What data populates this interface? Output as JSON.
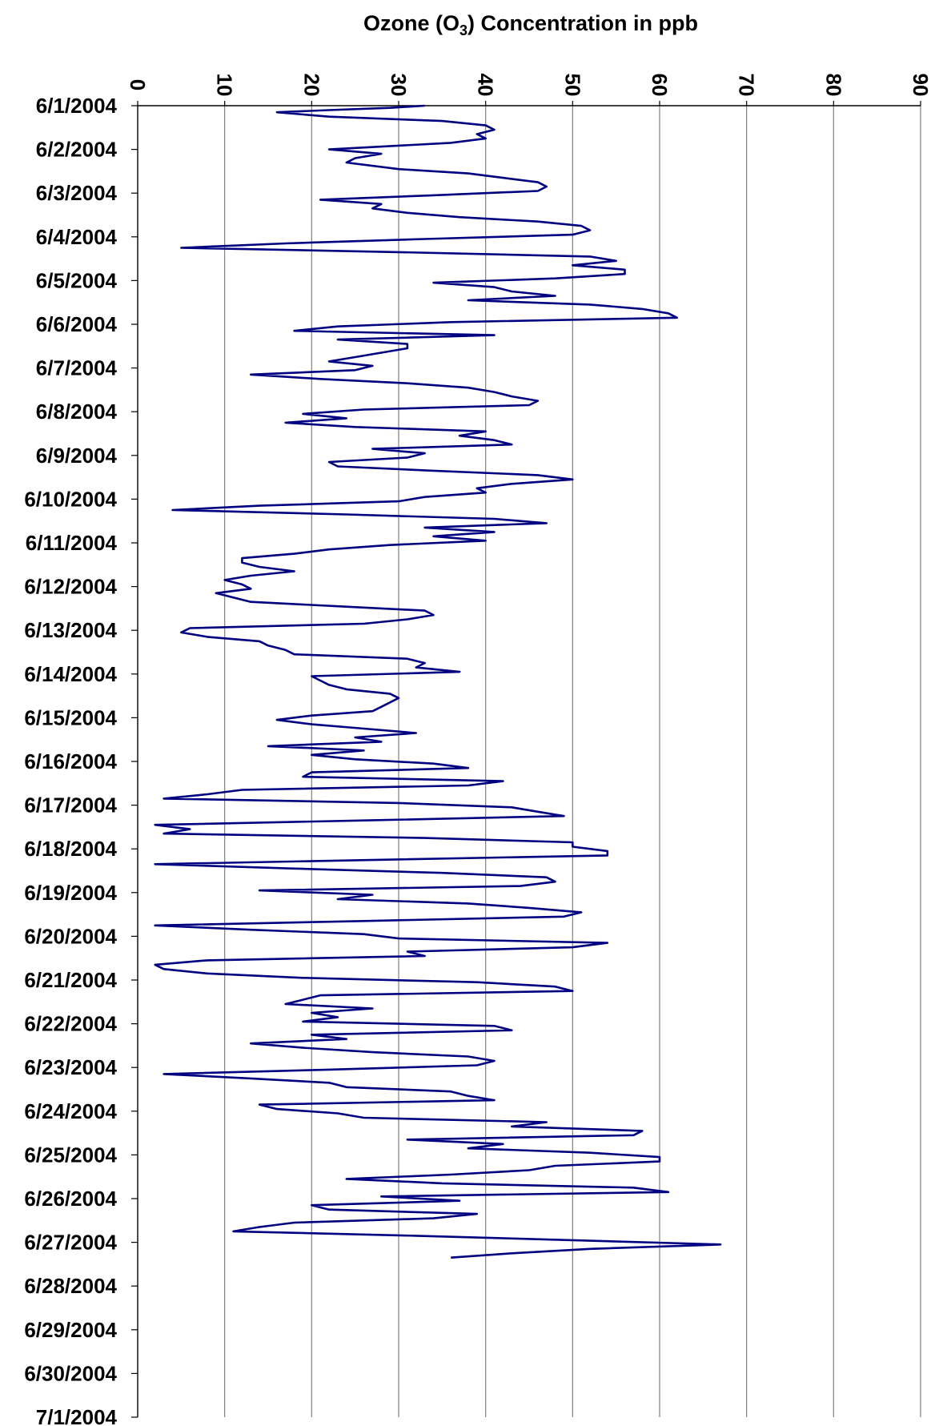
{
  "chart_data": {
    "type": "line",
    "orientation": "vertical-time",
    "title": "",
    "xlabel_parts": [
      "Ozone (O",
      "3",
      ") Concentration in ppb"
    ],
    "ylabel": "",
    "xlim": [
      0,
      90
    ],
    "x_ticks": [
      0,
      10,
      20,
      30,
      40,
      50,
      60,
      70,
      80,
      90
    ],
    "y_categories": [
      "6/1/2004",
      "6/2/2004",
      "6/3/2004",
      "6/4/2004",
      "6/5/2004",
      "6/6/2004",
      "6/7/2004",
      "6/8/2004",
      "6/9/2004",
      "6/10/2004",
      "6/11/2004",
      "6/12/2004",
      "6/13/2004",
      "6/14/2004",
      "6/15/2004",
      "6/16/2004",
      "6/17/2004",
      "6/18/2004",
      "6/19/2004",
      "6/20/2004",
      "6/21/2004",
      "6/22/2004",
      "6/23/2004",
      "6/24/2004",
      "6/25/2004",
      "6/26/2004",
      "6/27/2004",
      "6/28/2004",
      "6/29/2004",
      "6/30/2004",
      "7/1/2004"
    ],
    "grid": "vertical",
    "legend": "none",
    "series": [
      {
        "color": "#000080",
        "points_day_ppb": [
          [
            0.0,
            33
          ],
          [
            0.05,
            29
          ],
          [
            0.1,
            22
          ],
          [
            0.15,
            16
          ],
          [
            0.25,
            22
          ],
          [
            0.35,
            35
          ],
          [
            0.45,
            40
          ],
          [
            0.55,
            41
          ],
          [
            0.65,
            39
          ],
          [
            0.75,
            40
          ],
          [
            0.85,
            36
          ],
          [
            1.0,
            22
          ],
          [
            1.1,
            28
          ],
          [
            1.2,
            25
          ],
          [
            1.3,
            24
          ],
          [
            1.45,
            30
          ],
          [
            1.55,
            38
          ],
          [
            1.65,
            42
          ],
          [
            1.75,
            46
          ],
          [
            1.85,
            47
          ],
          [
            1.95,
            46
          ],
          [
            2.05,
            34
          ],
          [
            2.15,
            21
          ],
          [
            2.25,
            28
          ],
          [
            2.35,
            27
          ],
          [
            2.45,
            31
          ],
          [
            2.55,
            37
          ],
          [
            2.65,
            46
          ],
          [
            2.75,
            51
          ],
          [
            2.85,
            52
          ],
          [
            2.95,
            50
          ],
          [
            3.05,
            33
          ],
          [
            3.15,
            17
          ],
          [
            3.25,
            5
          ],
          [
            3.35,
            30
          ],
          [
            3.45,
            52
          ],
          [
            3.55,
            55
          ],
          [
            3.65,
            50
          ],
          [
            3.75,
            56
          ],
          [
            3.85,
            56
          ],
          [
            3.95,
            48
          ],
          [
            4.05,
            34
          ],
          [
            4.15,
            41
          ],
          [
            4.25,
            43
          ],
          [
            4.35,
            48
          ],
          [
            4.45,
            38
          ],
          [
            4.55,
            52
          ],
          [
            4.65,
            58
          ],
          [
            4.75,
            61
          ],
          [
            4.85,
            62
          ],
          [
            4.95,
            36
          ],
          [
            5.05,
            23
          ],
          [
            5.15,
            18
          ],
          [
            5.25,
            41
          ],
          [
            5.35,
            23
          ],
          [
            5.45,
            31
          ],
          [
            5.55,
            31
          ],
          [
            5.65,
            28
          ],
          [
            5.75,
            25
          ],
          [
            5.85,
            22
          ],
          [
            5.95,
            27
          ],
          [
            6.05,
            25
          ],
          [
            6.15,
            13
          ],
          [
            6.25,
            21
          ],
          [
            6.35,
            31
          ],
          [
            6.45,
            38
          ],
          [
            6.55,
            41
          ],
          [
            6.65,
            43
          ],
          [
            6.75,
            46
          ],
          [
            6.85,
            45
          ],
          [
            6.95,
            26
          ],
          [
            7.05,
            19
          ],
          [
            7.15,
            24
          ],
          [
            7.25,
            17
          ],
          [
            7.35,
            25
          ],
          [
            7.45,
            40
          ],
          [
            7.55,
            37
          ],
          [
            7.65,
            41
          ],
          [
            7.75,
            43
          ],
          [
            7.85,
            27
          ],
          [
            7.95,
            33
          ],
          [
            8.05,
            31
          ],
          [
            8.15,
            22
          ],
          [
            8.25,
            23
          ],
          [
            8.35,
            34
          ],
          [
            8.45,
            46
          ],
          [
            8.55,
            50
          ],
          [
            8.65,
            43
          ],
          [
            8.75,
            39
          ],
          [
            8.85,
            40
          ],
          [
            8.95,
            33
          ],
          [
            9.05,
            30
          ],
          [
            9.15,
            14
          ],
          [
            9.25,
            4
          ],
          [
            9.35,
            24
          ],
          [
            9.45,
            41
          ],
          [
            9.55,
            47
          ],
          [
            9.65,
            33
          ],
          [
            9.75,
            41
          ],
          [
            9.85,
            34
          ],
          [
            9.95,
            40
          ],
          [
            10.05,
            29
          ],
          [
            10.15,
            22
          ],
          [
            10.25,
            18
          ],
          [
            10.35,
            12
          ],
          [
            10.45,
            12
          ],
          [
            10.55,
            14
          ],
          [
            10.65,
            18
          ],
          [
            10.75,
            13
          ],
          [
            10.85,
            10
          ],
          [
            10.95,
            12
          ],
          [
            11.05,
            13
          ],
          [
            11.15,
            9
          ],
          [
            11.25,
            11
          ],
          [
            11.35,
            13
          ],
          [
            11.45,
            23
          ],
          [
            11.55,
            33
          ],
          [
            11.65,
            34
          ],
          [
            11.75,
            31
          ],
          [
            11.85,
            26
          ],
          [
            11.95,
            6
          ],
          [
            12.05,
            5
          ],
          [
            12.15,
            8
          ],
          [
            12.25,
            14
          ],
          [
            12.35,
            15
          ],
          [
            12.45,
            17
          ],
          [
            12.55,
            18
          ],
          [
            12.65,
            31
          ],
          [
            12.75,
            33
          ],
          [
            12.85,
            32
          ],
          [
            12.95,
            37
          ],
          [
            13.05,
            20
          ],
          [
            13.15,
            21
          ],
          [
            13.25,
            22
          ],
          [
            13.35,
            24
          ],
          [
            13.45,
            29
          ],
          [
            13.55,
            30
          ],
          [
            13.65,
            29
          ],
          [
            13.75,
            28
          ],
          [
            13.85,
            27
          ],
          [
            13.95,
            20
          ],
          [
            14.05,
            16
          ],
          [
            14.15,
            20
          ],
          [
            14.25,
            26
          ],
          [
            14.35,
            32
          ],
          [
            14.45,
            25
          ],
          [
            14.55,
            28
          ],
          [
            14.65,
            15
          ],
          [
            14.75,
            26
          ],
          [
            14.85,
            20
          ],
          [
            14.95,
            25
          ],
          [
            15.05,
            34
          ],
          [
            15.15,
            38
          ],
          [
            15.25,
            20
          ],
          [
            15.35,
            19
          ],
          [
            15.45,
            42
          ],
          [
            15.55,
            38
          ],
          [
            15.65,
            12
          ],
          [
            15.75,
            8
          ],
          [
            15.85,
            3
          ],
          [
            15.95,
            30
          ],
          [
            16.05,
            43
          ],
          [
            16.15,
            46
          ],
          [
            16.25,
            49
          ],
          [
            16.35,
            26
          ],
          [
            16.45,
            2
          ],
          [
            16.55,
            6
          ],
          [
            16.65,
            3
          ],
          [
            16.75,
            33
          ],
          [
            16.85,
            50
          ],
          [
            16.95,
            50
          ],
          [
            17.05,
            54
          ],
          [
            17.15,
            54
          ],
          [
            17.25,
            28
          ],
          [
            17.35,
            2
          ],
          [
            17.45,
            18
          ],
          [
            17.55,
            35
          ],
          [
            17.65,
            47
          ],
          [
            17.75,
            48
          ],
          [
            17.85,
            44
          ],
          [
            17.95,
            14
          ],
          [
            18.05,
            27
          ],
          [
            18.15,
            23
          ],
          [
            18.25,
            38
          ],
          [
            18.35,
            45
          ],
          [
            18.45,
            51
          ],
          [
            18.55,
            49
          ],
          [
            18.65,
            26
          ],
          [
            18.75,
            2
          ],
          [
            18.85,
            13
          ],
          [
            18.95,
            26
          ],
          [
            19.05,
            30
          ],
          [
            19.15,
            54
          ],
          [
            19.25,
            50
          ],
          [
            19.35,
            31
          ],
          [
            19.45,
            33
          ],
          [
            19.55,
            8
          ],
          [
            19.65,
            2
          ],
          [
            19.75,
            3
          ],
          [
            19.85,
            8
          ],
          [
            19.95,
            19
          ],
          [
            20.05,
            39
          ],
          [
            20.15,
            48
          ],
          [
            20.25,
            50
          ],
          [
            20.35,
            21
          ],
          [
            20.45,
            19
          ],
          [
            20.55,
            17
          ],
          [
            20.65,
            27
          ],
          [
            20.75,
            20
          ],
          [
            20.85,
            23
          ],
          [
            20.95,
            19
          ],
          [
            21.05,
            41
          ],
          [
            21.15,
            43
          ],
          [
            21.25,
            20
          ],
          [
            21.35,
            24
          ],
          [
            21.45,
            13
          ],
          [
            21.55,
            19
          ],
          [
            21.65,
            27
          ],
          [
            21.75,
            38
          ],
          [
            21.85,
            41
          ],
          [
            21.95,
            39
          ],
          [
            22.05,
            22
          ],
          [
            22.15,
            3
          ],
          [
            22.25,
            13
          ],
          [
            22.35,
            22
          ],
          [
            22.45,
            24
          ],
          [
            22.55,
            36
          ],
          [
            22.65,
            38
          ],
          [
            22.75,
            41
          ],
          [
            22.85,
            14
          ],
          [
            22.95,
            16
          ],
          [
            23.05,
            23
          ],
          [
            23.15,
            26
          ],
          [
            23.25,
            47
          ],
          [
            23.35,
            43
          ],
          [
            23.45,
            58
          ],
          [
            23.55,
            57
          ],
          [
            23.65,
            31
          ],
          [
            23.75,
            42
          ],
          [
            23.85,
            38
          ],
          [
            23.95,
            52
          ],
          [
            24.05,
            60
          ],
          [
            24.15,
            60
          ],
          [
            24.25,
            48
          ],
          [
            24.35,
            45
          ],
          [
            24.45,
            36
          ],
          [
            24.55,
            24
          ],
          [
            24.65,
            35
          ],
          [
            24.75,
            57
          ],
          [
            24.85,
            61
          ],
          [
            24.95,
            28
          ],
          [
            25.05,
            37
          ],
          [
            25.15,
            20
          ],
          [
            25.25,
            22
          ],
          [
            25.35,
            39
          ],
          [
            25.45,
            34
          ],
          [
            25.55,
            18
          ],
          [
            25.65,
            14
          ],
          [
            25.75,
            11
          ],
          [
            25.85,
            32
          ],
          [
            25.95,
            50
          ],
          [
            26.05,
            67
          ],
          [
            26.15,
            52
          ],
          [
            26.25,
            43
          ],
          [
            26.35,
            36
          ]
        ]
      }
    ]
  }
}
